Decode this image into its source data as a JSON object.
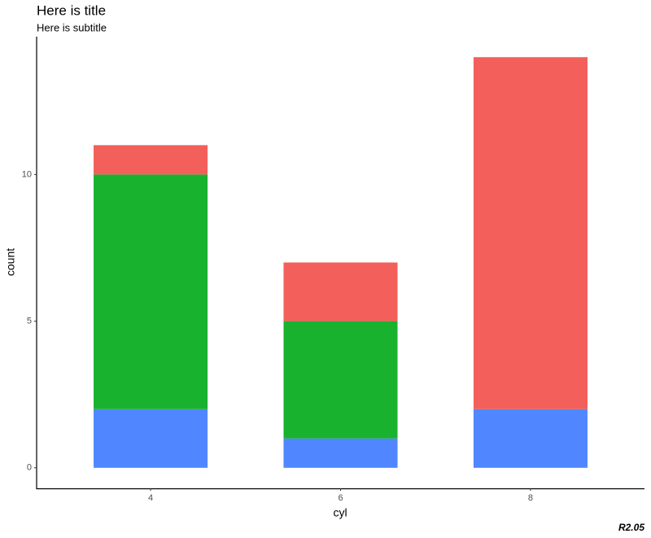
{
  "chart_data": {
    "type": "stacked_bar",
    "title": "Here is title",
    "subtitle": "Here is subtitle",
    "x_label": "cyl",
    "y_label": "count",
    "caption": "R2.05",
    "categories": [
      "4",
      "6",
      "8"
    ],
    "series": [
      {
        "color": "#F35F5B",
        "values": [
          1,
          2,
          12
        ]
      },
      {
        "color": "#19B22F",
        "values": [
          8,
          4,
          0
        ]
      },
      {
        "color": "#5086FF",
        "values": [
          2,
          1,
          2
        ]
      }
    ],
    "ylim": [
      -0.7,
      14.7
    ],
    "yticks": [
      0,
      5,
      10
    ],
    "grid": false
  }
}
